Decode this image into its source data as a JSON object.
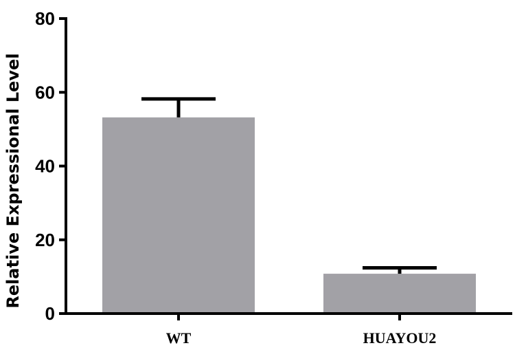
{
  "chart_data": {
    "type": "bar",
    "categories": [
      "WT",
      "HUAYOU2"
    ],
    "values": [
      53.2,
      10.8
    ],
    "errors": [
      5.0,
      1.6
    ],
    "ylabel": "Relative Expressional Level",
    "xlabel": "",
    "ylim": [
      0,
      80
    ],
    "yticks": [
      0,
      20,
      40,
      60,
      80
    ],
    "grid": false,
    "legend": "none",
    "colors": {
      "bar": "#a2a1a6",
      "axis": "#000000",
      "errorbar": "#000000"
    }
  }
}
